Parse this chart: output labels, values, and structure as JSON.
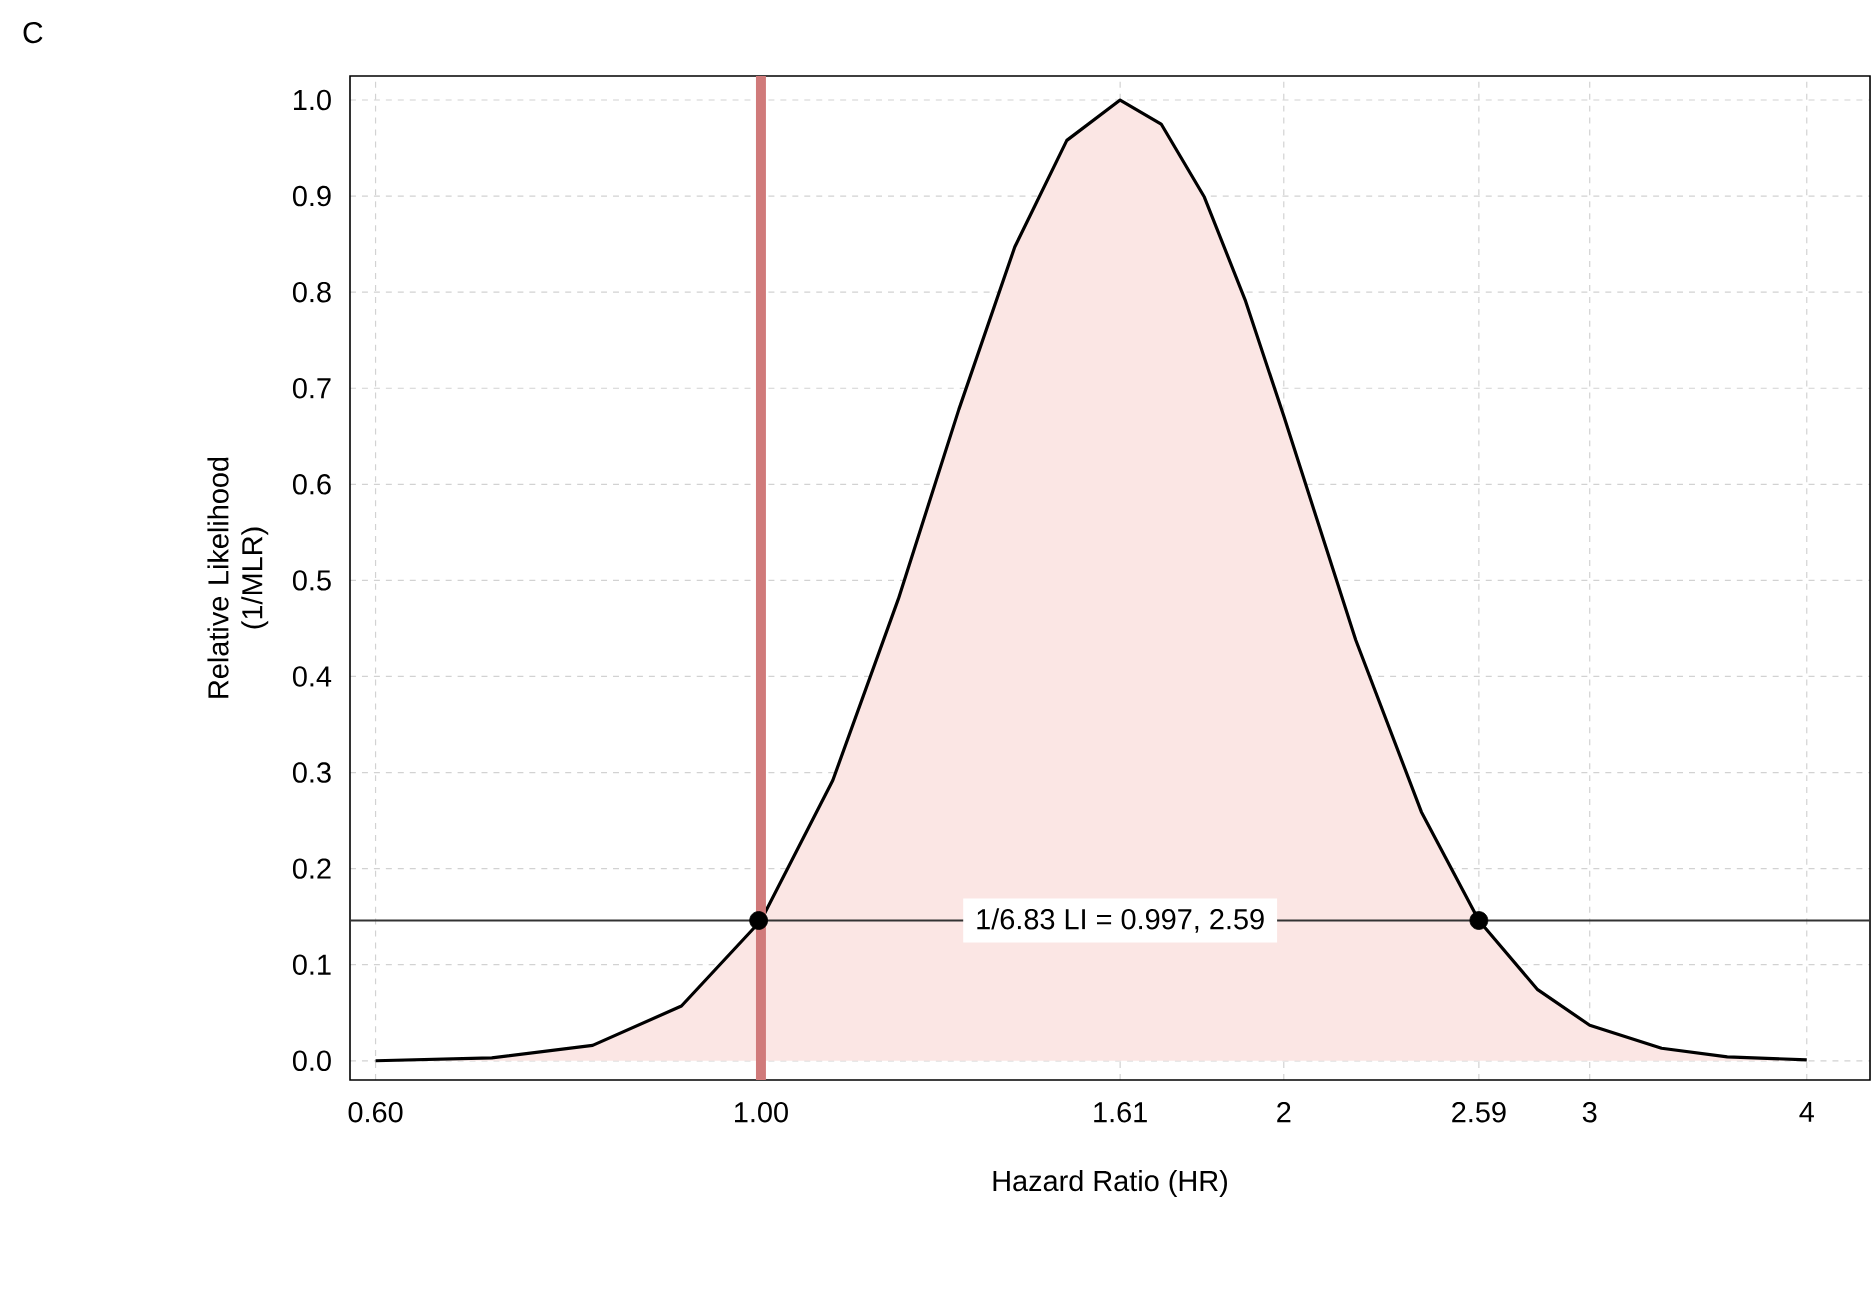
{
  "chart_data": {
    "type": "area",
    "title": "C",
    "xlabel": "Hazard Ratio (HR)",
    "ylabel": "Relative Likelihood (1/MLR)",
    "log": "x",
    "grid": true,
    "xlim": [
      0.58,
      4.35
    ],
    "ylim": [
      -0.02,
      1.025
    ],
    "xticks": [
      {
        "value": 0.6,
        "label": "0.60"
      },
      {
        "value": 1,
        "label": "1.00"
      },
      {
        "value": 1.61,
        "label": "1.61"
      },
      2,
      2.59,
      3,
      4
    ],
    "yticks": [
      {
        "value": 0,
        "label": "0.0"
      },
      0.1,
      0.2,
      0.3,
      0.4,
      0.5,
      0.6,
      0.7,
      0.8,
      0.9,
      {
        "value": 1,
        "label": "1.0"
      }
    ],
    "ref_lines": [
      {
        "axis": "x",
        "value": 1,
        "color": "#d07a7a"
      },
      {
        "axis": "y",
        "value": 0.146,
        "color": "#333333"
      }
    ],
    "annotations": [
      {
        "text": "1/6.83 LI = 0.997, 2.59",
        "x": 1.61,
        "y": 0.146
      }
    ],
    "series": [
      {
        "color": "#fbe6e4",
        "x": [
          0.6,
          0.7,
          0.8,
          0.9,
          1.0,
          1.1,
          1.2,
          1.3,
          1.4,
          1.5,
          1.61,
          1.7,
          1.8,
          1.9,
          2.0,
          2.2,
          2.4,
          2.59,
          2.8,
          3.0,
          3.3,
          3.6,
          4.0
        ],
        "values": [
          0.0,
          0.003,
          0.016,
          0.057,
          0.146,
          0.292,
          0.481,
          0.678,
          0.847,
          0.958,
          1.0,
          0.975,
          0.899,
          0.792,
          0.671,
          0.438,
          0.259,
          0.146,
          0.074,
          0.037,
          0.013,
          0.004,
          0.001
        ]
      },
      {
        "type": "scatter",
        "color": "#000000",
        "x": [
          0.997,
          2.59
        ],
        "values": [
          0.146,
          0.146
        ]
      }
    ]
  }
}
